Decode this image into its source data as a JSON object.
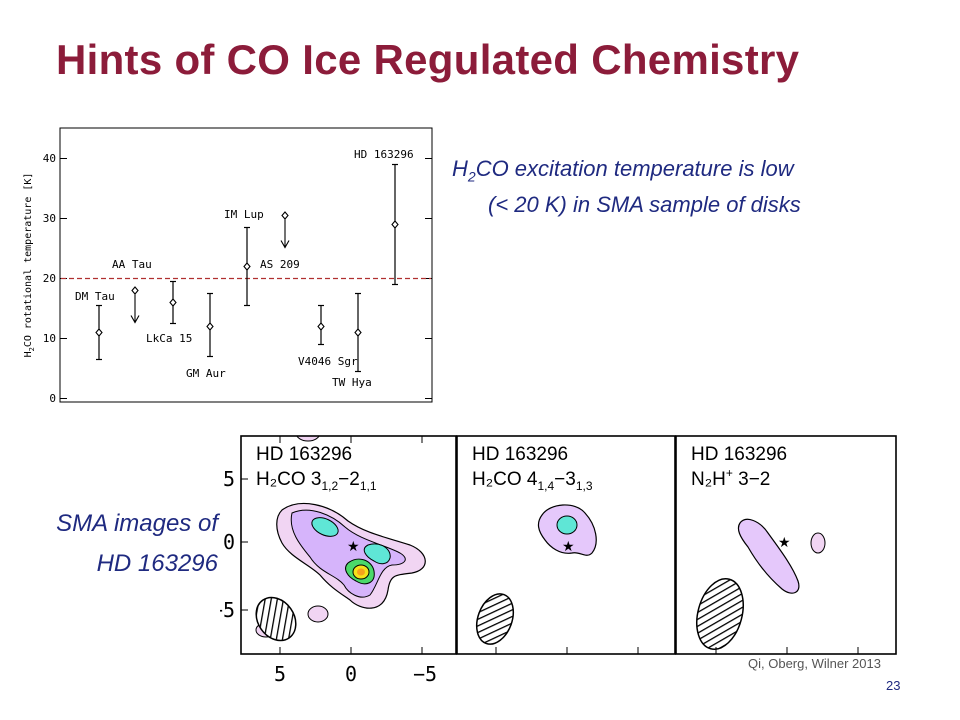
{
  "slide": {
    "title": "Hints of CO Ice Regulated Chemistry",
    "note_line1_prefix": "H",
    "note_line1_sub1": "2",
    "note_line1_mid": "CO excitation temperature is low",
    "note_line2": "(< 20 K) in SMA sample of disks",
    "caption_line1": "SMA images of",
    "caption_line2": "HD 163296",
    "credit": "Qi, Oberg, Wilner  2013",
    "page_number": "23",
    "colors": {
      "title": "#8c1c3a",
      "text": "#1f2a80",
      "dashed_line": "#b03030"
    }
  },
  "chart_data": [
    {
      "type": "scatter",
      "ylabel": "H2CO rotational temperature [K]",
      "ylim": [
        0,
        45
      ],
      "yticks": [
        0,
        10,
        20,
        30,
        40
      ],
      "reference_line": 20,
      "grid": false,
      "points": [
        {
          "name": "DM Tau",
          "y": 11,
          "err_low": 6.5,
          "err_high": 15.5,
          "kind": "errorbar"
        },
        {
          "name": "AA Tau",
          "y": 18,
          "upper_limit": true,
          "kind": "upper_limit"
        },
        {
          "name": "LkCa 15",
          "y": 16,
          "err_low": 12.5,
          "err_high": 19.5,
          "kind": "errorbar"
        },
        {
          "name": "GM Aur",
          "y": 12,
          "err_low": 7,
          "err_high": 17.5,
          "kind": "errorbar"
        },
        {
          "name": "IM Lup",
          "y": 22,
          "err_low": 15.5,
          "err_high": 28.5,
          "kind": "errorbar"
        },
        {
          "name": "AS 209",
          "y": 30.5,
          "upper_limit": true,
          "kind": "upper_limit"
        },
        {
          "name": "V4046 Sgr",
          "y": 12,
          "err_low": 9,
          "err_high": 15.5,
          "kind": "errorbar"
        },
        {
          "name": "TW Hya",
          "y": 11,
          "err_low": 4.5,
          "err_high": 17.5,
          "kind": "errorbar"
        },
        {
          "name": "HD 163296",
          "y": 29,
          "err_low": 19,
          "err_high": 39,
          "kind": "errorbar"
        }
      ]
    },
    {
      "type": "heatmap",
      "panels": [
        {
          "line1": "HD 163296",
          "line2_species": "H2CO 3(1,2)-2(1,1)"
        },
        {
          "line1": "HD 163296",
          "line2_species": "H2CO 4(1,4)-3(1,3)"
        },
        {
          "line1": "HD 163296",
          "line2_species": "N2H+ 3-2"
        }
      ],
      "x_ticks": [
        "5",
        "0",
        "−5"
      ],
      "y_ticks": [
        "5",
        "0",
        "−5"
      ]
    }
  ],
  "scatter_labels": {
    "dm_tau": "DM Tau",
    "aa_tau": "AA Tau",
    "lkca15": "LkCa 15",
    "gm_aur": "GM Aur",
    "im_lup": "IM Lup",
    "as209": "AS 209",
    "v4046": "V4046 Sgr",
    "tw_hya": "TW Hya",
    "hd163296": "HD 163296"
  },
  "axis": {
    "ylabel_prefix": "H",
    "ylabel_sub": "2",
    "ylabel_rest": "CO rotational temperature [K]",
    "ytick_0": "0",
    "ytick_10": "10",
    "ytick_20": "20",
    "ytick_30": "30",
    "ytick_40": "40"
  },
  "maps": {
    "p1_line1": "HD 163296",
    "p1_species": "H₂CO 3",
    "p1_sub": "1,2",
    "p1_dash": "−2",
    "p1_sub2": "1,1",
    "p2_line1": "HD 163296",
    "p2_species": "H₂CO 4",
    "p2_sub": "1,4",
    "p2_dash": "−3",
    "p2_sub2": "1,3",
    "p3_line1": "HD 163296",
    "p3_species": "N₂H",
    "p3_sup": "+",
    "p3_rest": " 3−2",
    "xtick_5": "5",
    "xtick_0": "0",
    "xtick_m5": "−5",
    "ytick_5": "5",
    "ytick_0": "0",
    "ytick_m5": "−5"
  }
}
